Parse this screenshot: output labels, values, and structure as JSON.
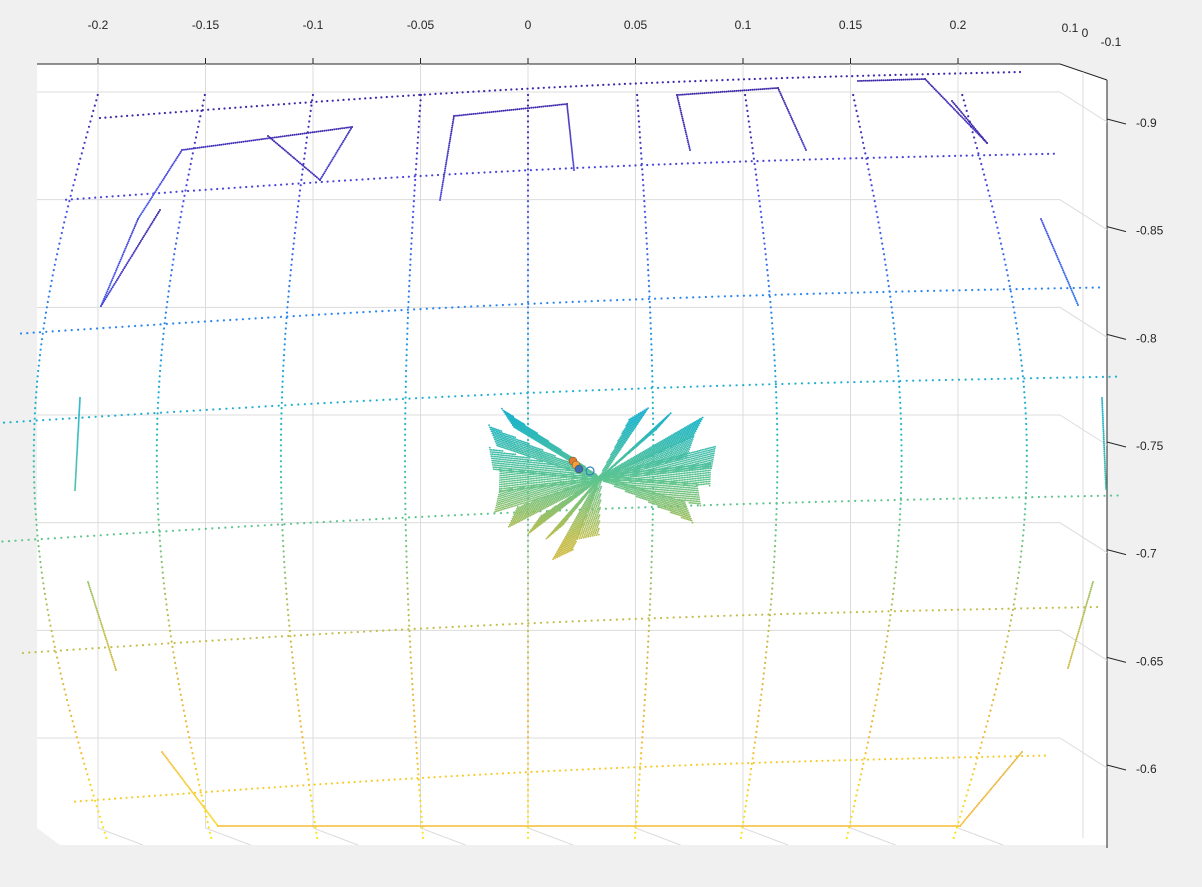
{
  "figure": {
    "background": "#f0f0f0",
    "axes_background": "#ffffff",
    "grid_color": "#dcdcdc",
    "axis_color": "#262626",
    "colormap": [
      "#3e26a8",
      "#4a4de8",
      "#2a84f0",
      "#1fb5c8",
      "#5ec48e",
      "#c2bd4a",
      "#f2b73a",
      "#f9e616"
    ]
  },
  "chart_data": {
    "type": "scatter",
    "view": "3d",
    "title": "",
    "xlabel": "",
    "ylabel": "",
    "zlabel": "",
    "grid": true,
    "legend": "none",
    "x_axis": {
      "range": [
        -0.2,
        0.2
      ],
      "ticks": [
        -0.2,
        -0.15,
        -0.1,
        -0.05,
        0,
        0.05,
        0.1,
        0.15,
        0.2
      ],
      "tick_labels": [
        "-0.2",
        "-0.15",
        "-0.1",
        "-0.05",
        "0",
        "0.05",
        "0.1",
        "0.15",
        "0.2"
      ]
    },
    "y_axis": {
      "range": [
        -0.1,
        0.1
      ],
      "ticks": [
        0.1,
        0,
        -0.1
      ],
      "tick_labels": [
        "0.1",
        "0",
        "-0.1"
      ]
    },
    "z_axis": {
      "range": [
        -0.6,
        -0.9
      ],
      "ticks": [
        -0.9,
        -0.85,
        -0.8,
        -0.75,
        -0.7,
        -0.65,
        -0.6
      ],
      "tick_labels": [
        "-0.9",
        "-0.85",
        "-0.8",
        "-0.75",
        "-0.7",
        "-0.65",
        "-0.6"
      ]
    },
    "series": [
      {
        "kind": "spherical-grid-points",
        "meridians_x": [
          -0.2,
          -0.15,
          -0.1,
          -0.05,
          0,
          0.05,
          0.1,
          0.15,
          0.2
        ],
        "parallels_z": [
          -0.9,
          -0.85,
          -0.8,
          -0.75,
          -0.7,
          -0.65,
          -0.6
        ],
        "color_by": "z"
      },
      {
        "kind": "fan-cluster",
        "center": [
          0.03,
          -0.75
        ],
        "color_by": "z"
      },
      {
        "kind": "markers",
        "points": [
          [
            0.022,
            0.0,
            -0.752
          ],
          [
            0.024,
            0.0,
            -0.754
          ],
          [
            0.026,
            0.0,
            -0.756
          ]
        ],
        "colors": [
          "#e07b2d",
          "#f2a03a",
          "#3c6fb6"
        ]
      },
      {
        "kind": "open-circle",
        "point": [
          0.028,
          0.0,
          -0.751
        ],
        "color": "#2d7fc1"
      }
    ]
  }
}
